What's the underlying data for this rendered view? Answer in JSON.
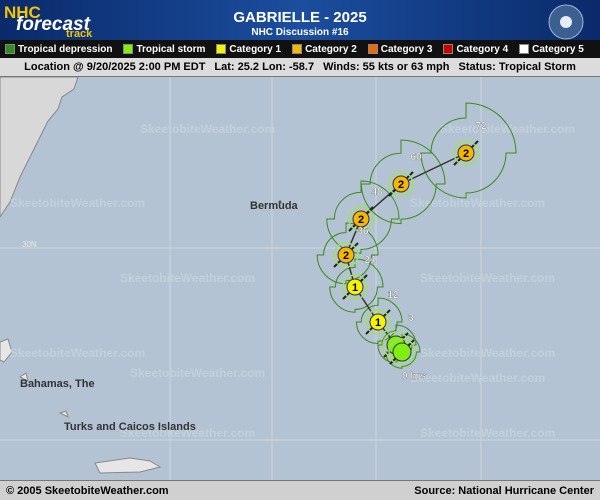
{
  "header": {
    "logo": [
      "NHC",
      "forecast",
      "track"
    ],
    "title": "GABRIELLE - 2025",
    "subtitle": "NHC Discussion #16"
  },
  "legend": [
    {
      "label": "Tropical depression",
      "color": "#2f8f1c"
    },
    {
      "label": "Tropical storm",
      "color": "#7fef10"
    },
    {
      "label": "Category 1",
      "color": "#f4f400"
    },
    {
      "label": "Category 2",
      "color": "#f5b800"
    },
    {
      "label": "Category 3",
      "color": "#f06a00"
    },
    {
      "label": "Category 4",
      "color": "#c80000"
    },
    {
      "label": "Category 5",
      "color": "#ffffff"
    }
  ],
  "status": [
    "Location @ 9/20/2025 2:00 PM EDT",
    "Lat: 25.2 Lon: -58.7",
    "Winds: 55 kts or 63 mph",
    "Status: Tropical Storm"
  ],
  "map": {
    "watermark": "SkeetobiteWeather.com",
    "grid_label": "30N",
    "places": [
      "Bermuda",
      "Bahamas, The",
      "Turks and Caicos Islands"
    ],
    "track": [
      {
        "hours": "72",
        "category": "2",
        "color": "#f5b800"
      },
      {
        "hours": "60",
        "category": "2",
        "color": "#f5b800"
      },
      {
        "hours": "48",
        "category": "2",
        "color": "#f5b800"
      },
      {
        "hours": "36",
        "category": "2",
        "color": "#f5b800"
      },
      {
        "hours": "24",
        "category": "1",
        "color": "#f4f400"
      },
      {
        "hours": "12",
        "category": "1",
        "color": "#f4f400"
      },
      {
        "hours": "3",
        "color": "#7fef10"
      },
      {
        "hours": "0 hrs",
        "color": "#7fef10"
      }
    ]
  },
  "footer": {
    "left": "© 2005 SkeetobiteWeather.com",
    "right": "Source: National Hurricane Center"
  }
}
